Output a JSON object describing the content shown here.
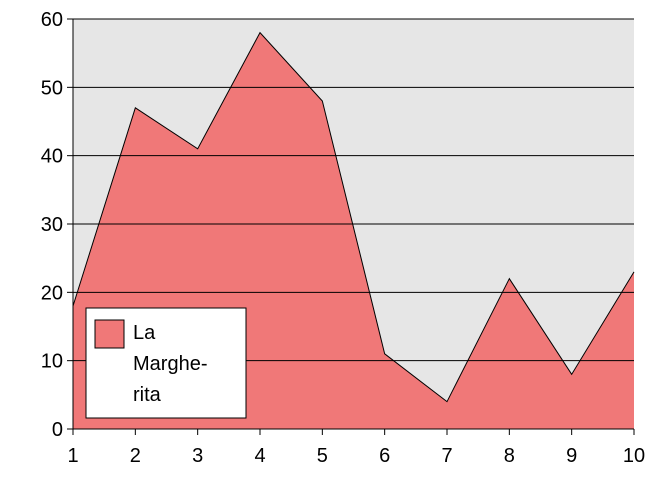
{
  "chart_data": {
    "type": "area",
    "x": [
      1,
      2,
      3,
      4,
      5,
      6,
      7,
      8,
      9,
      10
    ],
    "series": [
      {
        "name": "La Marghe-rita",
        "color": "#f07878",
        "values": [
          18,
          47,
          41,
          58,
          48,
          11,
          4,
          22,
          8,
          23
        ]
      }
    ],
    "xlim": [
      1,
      10
    ],
    "xticks": [
      1,
      2,
      3,
      4,
      5,
      6,
      7,
      8,
      9,
      10
    ],
    "ylim": [
      0,
      60
    ],
    "yticks": [
      0,
      10,
      20,
      30,
      40,
      50,
      60
    ],
    "grid": true,
    "legend": "lower left"
  }
}
